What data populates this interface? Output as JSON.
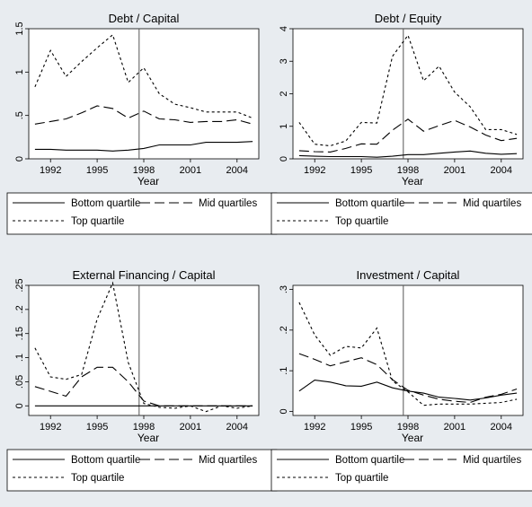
{
  "chart_data": [
    {
      "type": "line",
      "title": "Debt / Capital",
      "xlabel": "Year",
      "ylabel": "",
      "x": [
        1991,
        1992,
        1993,
        1994,
        1995,
        1996,
        1997,
        1998,
        1999,
        2000,
        2001,
        2002,
        2003,
        2004,
        2005
      ],
      "xticks": [
        "1992",
        "1995",
        "1998",
        "2001",
        "2004"
      ],
      "yticks": [
        "0",
        ".5",
        "1",
        "1.5"
      ],
      "ylim": [
        0,
        1.5
      ],
      "vline": 1997.7,
      "series": [
        {
          "name": "Bottom quartile",
          "style": "solid",
          "values": [
            0.11,
            0.11,
            0.1,
            0.1,
            0.1,
            0.09,
            0.1,
            0.12,
            0.16,
            0.16,
            0.16,
            0.19,
            0.19,
            0.19,
            0.2
          ]
        },
        {
          "name": "Mid quartiles",
          "style": "longdash",
          "values": [
            0.4,
            0.43,
            0.46,
            0.53,
            0.61,
            0.58,
            0.47,
            0.55,
            0.46,
            0.45,
            0.42,
            0.43,
            0.43,
            0.45,
            0.4
          ]
        },
        {
          "name": "Top quartile",
          "style": "shortdash",
          "values": [
            0.83,
            1.25,
            0.95,
            1.12,
            1.28,
            1.43,
            0.88,
            1.05,
            0.75,
            0.63,
            0.59,
            0.54,
            0.54,
            0.54,
            0.47
          ]
        }
      ]
    },
    {
      "type": "line",
      "title": "Debt / Equity",
      "xlabel": "Year",
      "ylabel": "",
      "x": [
        1991,
        1992,
        1993,
        1994,
        1995,
        1996,
        1997,
        1998,
        1999,
        2000,
        2001,
        2002,
        2003,
        2004,
        2005
      ],
      "xticks": [
        "1992",
        "1995",
        "1998",
        "2001",
        "2004"
      ],
      "yticks": [
        "0",
        "1",
        "2",
        "3",
        "4"
      ],
      "ylim": [
        0,
        4
      ],
      "vline": 1997.7,
      "series": [
        {
          "name": "Bottom quartile",
          "style": "solid",
          "values": [
            0.1,
            0.08,
            0.07,
            0.07,
            0.07,
            0.05,
            0.08,
            0.13,
            0.13,
            0.17,
            0.21,
            0.24,
            0.17,
            0.14,
            0.16
          ]
        },
        {
          "name": "Mid quartiles",
          "style": "longdash",
          "values": [
            0.25,
            0.22,
            0.21,
            0.32,
            0.46,
            0.45,
            0.88,
            1.22,
            0.85,
            1.02,
            1.18,
            0.98,
            0.73,
            0.56,
            0.63
          ]
        },
        {
          "name": "Top quartile",
          "style": "shortdash",
          "values": [
            1.12,
            0.45,
            0.4,
            0.55,
            1.12,
            1.1,
            3.15,
            3.8,
            2.4,
            2.85,
            2.05,
            1.6,
            0.9,
            0.9,
            0.75
          ]
        }
      ]
    },
    {
      "type": "line",
      "title": "External Financing / Capital",
      "xlabel": "Year",
      "ylabel": "",
      "x": [
        1991,
        1992,
        1993,
        1994,
        1995,
        1996,
        1997,
        1998,
        1999,
        2000,
        2001,
        2002,
        2003,
        2004,
        2005
      ],
      "xticks": [
        "1992",
        "1995",
        "1998",
        "2001",
        "2004"
      ],
      "yticks": [
        "0",
        ".05",
        ".1",
        ".15",
        ".2",
        ".25"
      ],
      "ylim": [
        -0.02,
        0.25
      ],
      "vline": 1997.7,
      "series": [
        {
          "name": "Bottom quartile",
          "style": "solid",
          "values": [
            0,
            0,
            0,
            0,
            0,
            0,
            0,
            0,
            0,
            0,
            0,
            0,
            0,
            0,
            0
          ]
        },
        {
          "name": "Mid quartiles",
          "style": "longdash",
          "values": [
            0.04,
            0.03,
            0.02,
            0.06,
            0.08,
            0.08,
            0.05,
            0.01,
            0.0,
            0.0,
            0.0,
            0.0,
            0.0,
            0.0,
            0.0
          ]
        },
        {
          "name": "Top quartile",
          "style": "shortdash",
          "values": [
            0.12,
            0.06,
            0.055,
            0.065,
            0.18,
            0.255,
            0.09,
            0.005,
            -0.003,
            -0.005,
            0.0,
            -0.012,
            0.0,
            -0.005,
            0.0
          ]
        }
      ]
    },
    {
      "type": "line",
      "title": "Investment / Capital",
      "xlabel": "Year",
      "ylabel": "",
      "x": [
        1991,
        1992,
        1993,
        1994,
        1995,
        1996,
        1997,
        1998,
        1999,
        2000,
        2001,
        2002,
        2003,
        2004,
        2005
      ],
      "xticks": [
        "1992",
        "1995",
        "1998",
        "2001",
        "2004"
      ],
      "yticks": [
        "0",
        ".1",
        ".2",
        ".3"
      ],
      "ylim": [
        -0.01,
        0.31
      ],
      "vline": 1997.7,
      "series": [
        {
          "name": "Bottom quartile",
          "style": "solid",
          "values": [
            0.05,
            0.077,
            0.072,
            0.063,
            0.062,
            0.072,
            0.058,
            0.05,
            0.045,
            0.035,
            0.032,
            0.028,
            0.033,
            0.04,
            0.045
          ]
        },
        {
          "name": "Mid quartiles",
          "style": "longdash",
          "values": [
            0.142,
            0.128,
            0.112,
            0.122,
            0.132,
            0.115,
            0.078,
            0.052,
            0.04,
            0.03,
            0.025,
            0.022,
            0.035,
            0.042,
            0.055
          ]
        },
        {
          "name": "Top quartile",
          "style": "shortdash",
          "values": [
            0.268,
            0.188,
            0.138,
            0.16,
            0.156,
            0.205,
            0.075,
            0.048,
            0.015,
            0.018,
            0.018,
            0.018,
            0.02,
            0.022,
            0.03
          ]
        }
      ]
    }
  ],
  "legend": {
    "bottom": "Bottom quartile",
    "mid": "Mid quartiles",
    "top": "Top quartile"
  },
  "colors": {
    "background": "#e8ecf0",
    "plot": "#ffffff",
    "line": "#000000",
    "vline": "#555555"
  }
}
